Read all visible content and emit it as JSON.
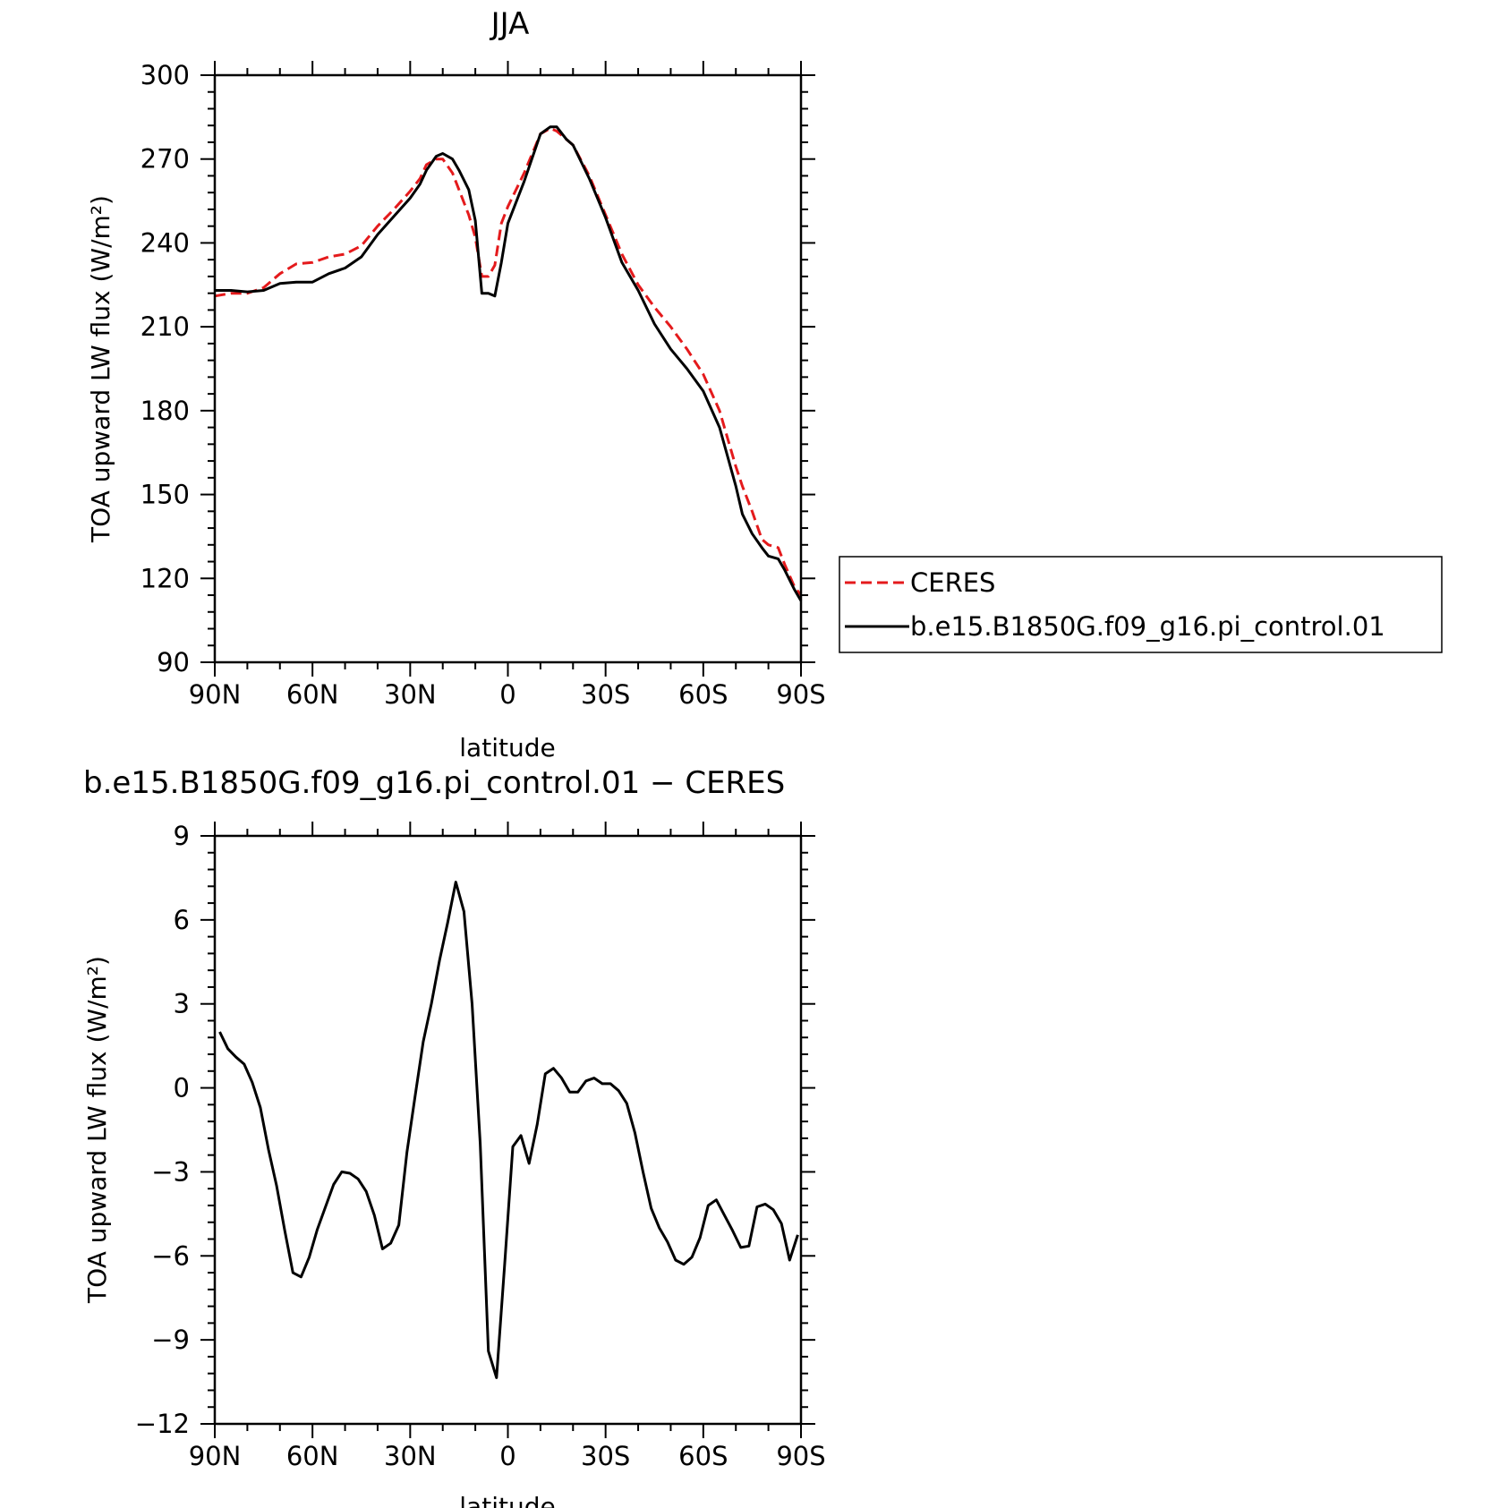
{
  "chart_data": [
    {
      "type": "line",
      "title": "JJA",
      "xlabel": "latitude",
      "ylabel": "TOA upward LW flux (W/m²)",
      "ylim": [
        90,
        300
      ],
      "yticks": [
        "300",
        "270",
        "240",
        "210",
        "180",
        "150",
        "120",
        "90"
      ],
      "ytick_values": [
        300,
        270,
        240,
        210,
        180,
        150,
        120,
        90
      ],
      "xlim": [
        90,
        -90
      ],
      "xticks": [
        "90N",
        "60N",
        "30N",
        "0",
        "30S",
        "60S",
        "90S"
      ],
      "xtick_values": [
        90,
        60,
        30,
        0,
        -30,
        -60,
        -90
      ],
      "legend": {
        "placement": "right",
        "entries": [
          {
            "label": "CERES",
            "color": "#e41a1c",
            "dash": true
          },
          {
            "label": "b.e15.B1850G.f09_g16.pi_control.01",
            "color": "#000000",
            "dash": false
          }
        ]
      },
      "series": [
        {
          "name": "CERES",
          "color": "#e41a1c",
          "dash": true,
          "x": [
            90,
            85,
            80,
            75,
            70,
            65,
            60,
            55,
            50,
            45,
            40,
            35,
            30,
            27,
            25,
            22,
            20,
            17,
            15,
            12,
            10,
            8,
            6,
            4,
            2,
            0,
            -5,
            -10,
            -13,
            -15,
            -18,
            -20,
            -25,
            -30,
            -35,
            -40,
            -45,
            -50,
            -55,
            -60,
            -65,
            -70,
            -72,
            -75,
            -78,
            -80,
            -83,
            -85,
            -88,
            -90
          ],
          "y": [
            221,
            222,
            222,
            224,
            229,
            232.5,
            233,
            235,
            236,
            239,
            246,
            252,
            258.5,
            263,
            268,
            270,
            270,
            265,
            259,
            250,
            242,
            228,
            228,
            232,
            247,
            253,
            265,
            279,
            281,
            280,
            277,
            275,
            264,
            250,
            236,
            225,
            217,
            210,
            202,
            193,
            180,
            160,
            153,
            144,
            134,
            132,
            131,
            125,
            117,
            114
          ]
        },
        {
          "name": "b.e15.B1850G.f09_g16.pi_control.01",
          "color": "#000000",
          "dash": false,
          "x": [
            90,
            85,
            80,
            75,
            70,
            65,
            60,
            55,
            50,
            45,
            40,
            35,
            30,
            27,
            25,
            22,
            20,
            17,
            15,
            12,
            10,
            8,
            6,
            4,
            2,
            0,
            -5,
            -10,
            -13,
            -15,
            -18,
            -20,
            -25,
            -30,
            -35,
            -40,
            -45,
            -50,
            -55,
            -60,
            -65,
            -70,
            -72,
            -75,
            -78,
            -80,
            -83,
            -85,
            -88,
            -90
          ],
          "y": [
            223,
            223,
            222.5,
            223,
            225.5,
            226,
            226,
            229,
            231,
            235,
            243,
            249.5,
            256,
            261,
            266,
            271,
            272,
            270,
            266,
            259,
            248,
            222,
            222,
            221,
            233,
            247,
            262,
            279,
            281.5,
            281.5,
            277,
            275,
            263,
            249,
            233,
            223,
            211,
            202,
            195,
            187,
            174,
            153,
            143,
            136,
            131,
            128,
            127,
            123,
            116,
            112
          ]
        }
      ]
    },
    {
      "type": "line",
      "title": "b.e15.B1850G.f09_g16.pi_control.01 − CERES",
      "xlabel": "latitude",
      "ylabel": "TOA upward LW flux (W/m²)",
      "ylim": [
        -12,
        9
      ],
      "yticks": [
        "9",
        "6",
        "3",
        "0",
        "−3",
        "−6",
        "−9",
        "−12"
      ],
      "ytick_values": [
        9,
        6,
        3,
        0,
        -3,
        -6,
        -9,
        -12
      ],
      "xlim": [
        90,
        -90
      ],
      "xticks": [
        "90N",
        "60N",
        "30N",
        "0",
        "30S",
        "60S",
        "90S"
      ],
      "xtick_values": [
        90,
        60,
        30,
        0,
        -30,
        -60,
        -90
      ],
      "series": [
        {
          "name": "",
          "color": "#000000",
          "dash": false,
          "x": [
            88.5,
            86,
            83.5,
            81,
            78.5,
            76,
            73.5,
            71,
            68.5,
            66,
            63.5,
            61,
            58.5,
            56,
            53.5,
            51,
            48.5,
            46,
            43.5,
            41,
            38.5,
            36,
            33.5,
            31,
            28.5,
            26,
            23.5,
            21,
            18.5,
            16,
            13.5,
            11,
            8.5,
            6,
            3.5,
            1,
            -1.5,
            -4,
            -6.5,
            -9,
            -11.5,
            -14,
            -16.5,
            -19,
            -21.5,
            -24,
            -26.5,
            -29,
            -31.5,
            -34,
            -36.5,
            -39,
            -41.5,
            -44,
            -46.5,
            -49,
            -51.5,
            -54,
            -56.5,
            -59,
            -61.5,
            -64,
            -66.5,
            -69,
            -71.5,
            -74,
            -76.5,
            -79,
            -81.5,
            -84,
            -86.5,
            -89
          ],
          "y": [
            2.0,
            1.4,
            1.1,
            0.85,
            0.2,
            -0.7,
            -2.2,
            -3.5,
            -5.1,
            -6.6,
            -6.75,
            -6.05,
            -5.05,
            -4.25,
            -3.45,
            -3.0,
            -3.05,
            -3.25,
            -3.7,
            -4.55,
            -5.75,
            -5.55,
            -4.9,
            -2.3,
            -0.3,
            1.65,
            3.0,
            4.55,
            5.9,
            7.35,
            6.3,
            3.0,
            -2.0,
            -9.4,
            -10.35,
            -6.3,
            -2.1,
            -1.7,
            -2.7,
            -1.3,
            0.5,
            0.7,
            0.35,
            -0.15,
            -0.15,
            0.25,
            0.35,
            0.15,
            0.15,
            -0.1,
            -0.55,
            -1.6,
            -3.0,
            -4.3,
            -5.0,
            -5.5,
            -6.15,
            -6.3,
            -6.05,
            -5.35,
            -4.2,
            -4.0,
            -4.55,
            -5.1,
            -5.7,
            -5.65,
            -4.25,
            -4.15,
            -4.35,
            -4.85,
            -6.15,
            -5.25
          ]
        }
      ]
    }
  ]
}
